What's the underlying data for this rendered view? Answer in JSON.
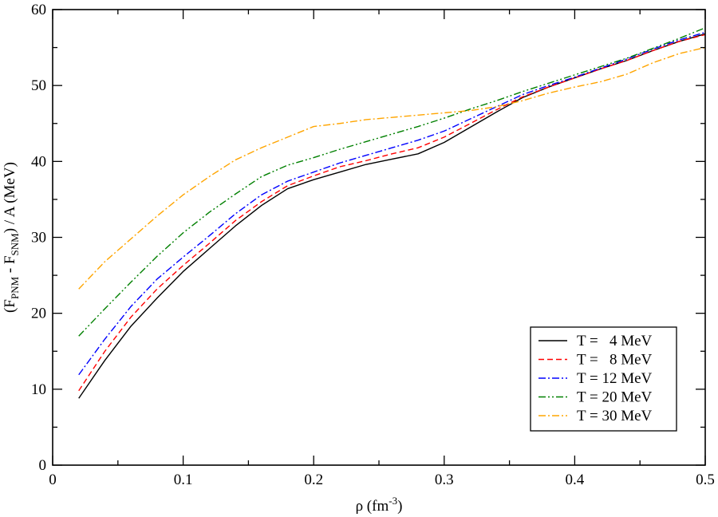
{
  "chart_data": {
    "type": "line",
    "xlabel": {
      "base": "ρ (fm",
      "sup": "-3",
      "tail": ")"
    },
    "ylabel": {
      "p1": "(F",
      "s1": "PNM",
      "p2": " - F",
      "s2": "SNM",
      "p3": ") / A (MeV)"
    },
    "xlim": [
      0,
      0.5
    ],
    "ylim": [
      0,
      60
    ],
    "xticks": [
      0,
      0.1,
      0.2,
      0.3,
      0.4,
      0.5
    ],
    "xtick_labels": [
      "0",
      "0.1",
      "0.2",
      "0.3",
      "0.4",
      "0.5"
    ],
    "yticks": [
      0,
      10,
      20,
      30,
      40,
      50,
      60
    ],
    "ytick_labels": [
      "0",
      "10",
      "20",
      "30",
      "40",
      "50",
      "60"
    ],
    "grid": false,
    "legend_position": "bottom-right",
    "series": [
      {
        "name": "T =   4 MeV",
        "color": "#000000",
        "dash": "",
        "x": [
          0.02,
          0.04,
          0.06,
          0.08,
          0.1,
          0.12,
          0.14,
          0.16,
          0.18,
          0.2,
          0.22,
          0.24,
          0.26,
          0.28,
          0.3,
          0.32,
          0.34,
          0.36,
          0.38,
          0.4,
          0.42,
          0.44,
          0.46,
          0.48,
          0.5
        ],
        "y": [
          8.8,
          13.8,
          18.3,
          22.0,
          25.5,
          28.5,
          31.5,
          34.2,
          36.4,
          37.6,
          38.6,
          39.6,
          40.3,
          41.0,
          42.5,
          44.5,
          46.5,
          48.4,
          49.8,
          51.0,
          52.2,
          53.3,
          54.6,
          55.8,
          56.8
        ]
      },
      {
        "name": "T =   8 MeV",
        "color": "#ff0000",
        "dash": "7,4",
        "x": [
          0.02,
          0.04,
          0.06,
          0.08,
          0.1,
          0.12,
          0.14,
          0.16,
          0.18,
          0.2,
          0.22,
          0.24,
          0.26,
          0.28,
          0.3,
          0.32,
          0.34,
          0.36,
          0.38,
          0.4,
          0.42,
          0.44,
          0.46,
          0.48,
          0.5
        ],
        "y": [
          9.8,
          15.0,
          19.5,
          23.2,
          26.3,
          29.2,
          32.2,
          34.7,
          36.8,
          38.1,
          39.3,
          40.1,
          41.0,
          41.8,
          43.2,
          45.0,
          46.8,
          48.5,
          49.8,
          51.0,
          52.2,
          53.3,
          54.6,
          55.8,
          56.7
        ]
      },
      {
        "name": "T = 12 MeV",
        "color": "#0000ff",
        "dash": "9,3,2,3",
        "x": [
          0.02,
          0.04,
          0.06,
          0.08,
          0.1,
          0.12,
          0.14,
          0.16,
          0.18,
          0.2,
          0.22,
          0.24,
          0.26,
          0.28,
          0.3,
          0.32,
          0.34,
          0.36,
          0.38,
          0.4,
          0.42,
          0.44,
          0.46,
          0.48,
          0.5
        ],
        "y": [
          11.9,
          16.6,
          20.9,
          24.5,
          27.4,
          30.2,
          33.1,
          35.6,
          37.4,
          38.6,
          39.8,
          40.8,
          41.8,
          42.8,
          44.0,
          45.6,
          47.2,
          48.8,
          50.0,
          51.1,
          52.3,
          53.5,
          54.8,
          56.0,
          57.0
        ]
      },
      {
        "name": "T = 20 MeV",
        "color": "#008000",
        "dash": "9,3,2,3,2,3",
        "x": [
          0.02,
          0.04,
          0.06,
          0.08,
          0.1,
          0.12,
          0.14,
          0.16,
          0.18,
          0.2,
          0.22,
          0.24,
          0.26,
          0.28,
          0.3,
          0.32,
          0.34,
          0.36,
          0.38,
          0.4,
          0.42,
          0.44,
          0.46,
          0.48,
          0.5
        ],
        "y": [
          17.0,
          20.6,
          24.1,
          27.5,
          30.6,
          33.3,
          35.7,
          38.0,
          39.5,
          40.5,
          41.6,
          42.6,
          43.6,
          44.6,
          45.7,
          46.9,
          48.0,
          49.2,
          50.3,
          51.4,
          52.5,
          53.6,
          54.9,
          56.2,
          57.6
        ]
      },
      {
        "name": "T = 30 MeV",
        "color": "#ffa500",
        "dash": "9,3,2,3",
        "x": [
          0.02,
          0.04,
          0.06,
          0.08,
          0.1,
          0.12,
          0.14,
          0.16,
          0.18,
          0.2,
          0.22,
          0.24,
          0.26,
          0.28,
          0.3,
          0.32,
          0.34,
          0.36,
          0.38,
          0.4,
          0.42,
          0.44,
          0.46,
          0.48,
          0.5
        ],
        "y": [
          23.2,
          26.8,
          29.8,
          32.8,
          35.6,
          38.0,
          40.2,
          41.8,
          43.2,
          44.6,
          45.0,
          45.5,
          45.8,
          46.1,
          46.4,
          46.7,
          47.2,
          48.0,
          49.0,
          49.8,
          50.5,
          51.5,
          53.0,
          54.2,
          55.0
        ]
      }
    ]
  }
}
